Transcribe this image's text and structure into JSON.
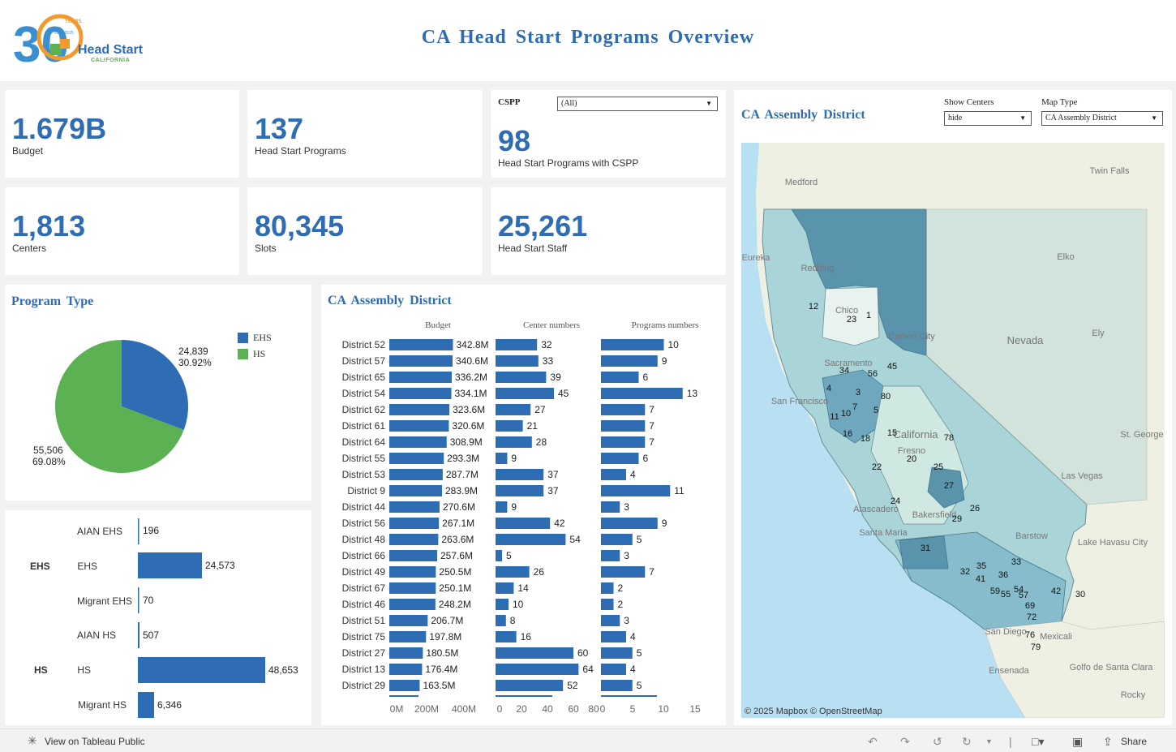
{
  "header": {
    "title": "CA  Head  Start  Programs  Overview",
    "logo_number": "30",
    "logo_years": "YEARS",
    "logo_range": "1995 2025",
    "logo_name": "Head Start",
    "logo_sub": "CALIFORNIA"
  },
  "kpis": [
    {
      "value": "1.679B",
      "label": "Budget"
    },
    {
      "value": "137",
      "label": "Head Start Programs"
    },
    {
      "value": "98",
      "label": "Head Start Programs with CSPP"
    },
    {
      "value": "1,813",
      "label": "Centers"
    },
    {
      "value": "80,345",
      "label": "Slots"
    },
    {
      "value": "25,261",
      "label": "Head Start Staff"
    }
  ],
  "cspp_filter": {
    "label": "CSPP",
    "value": "(All)"
  },
  "program_type": {
    "title": "Program  Type",
    "legend": [
      {
        "name": "EHS",
        "color": "#2e6cb3"
      },
      {
        "name": "HS",
        "color": "#5cb152"
      }
    ],
    "labels": [
      {
        "value": "24,839",
        "pct": "30.92%"
      },
      {
        "value": "55,506",
        "pct": "69.08%"
      }
    ]
  },
  "subprogram": {
    "groups": [
      "EHS",
      "HS"
    ],
    "rows": [
      {
        "label": "AIAN EHS",
        "text": "196"
      },
      {
        "label": "EHS",
        "text": "24,573"
      },
      {
        "label": "Migrant EHS",
        "text": "70"
      },
      {
        "label": "AIAN HS",
        "text": "507"
      },
      {
        "label": "HS",
        "text": "48,653"
      },
      {
        "label": "Migrant HS",
        "text": "6,346"
      }
    ]
  },
  "district_table": {
    "title": "CA  Assembly  District",
    "col_budget": "Budget",
    "col_centers": "Center numbers",
    "col_programs": "Programs numbers",
    "axis_budget": [
      "0M",
      "200M",
      "400M"
    ],
    "axis_centers": [
      "0",
      "20",
      "40",
      "60",
      "80"
    ],
    "axis_programs": [
      "0",
      "5",
      "10",
      "15"
    ],
    "rows": [
      {
        "district": "District 52",
        "budget_label": "342.8M",
        "centers_label": "32",
        "programs_label": "10"
      },
      {
        "district": "District 57",
        "budget_label": "340.6M",
        "centers_label": "33",
        "programs_label": "9"
      },
      {
        "district": "District 65",
        "budget_label": "336.2M",
        "centers_label": "39",
        "programs_label": "6"
      },
      {
        "district": "District 54",
        "budget_label": "334.1M",
        "centers_label": "45",
        "programs_label": "13"
      },
      {
        "district": "District 62",
        "budget_label": "323.6M",
        "centers_label": "27",
        "programs_label": "7"
      },
      {
        "district": "District 61",
        "budget_label": "320.6M",
        "centers_label": "21",
        "programs_label": "7"
      },
      {
        "district": "District 64",
        "budget_label": "308.9M",
        "centers_label": "28",
        "programs_label": "7"
      },
      {
        "district": "District 55",
        "budget_label": "293.3M",
        "centers_label": "9",
        "programs_label": "6"
      },
      {
        "district": "District 53",
        "budget_label": "287.7M",
        "centers_label": "37",
        "programs_label": "4"
      },
      {
        "district": "District 9",
        "budget_label": "283.9M",
        "centers_label": "37",
        "programs_label": "11"
      },
      {
        "district": "District 44",
        "budget_label": "270.6M",
        "centers_label": "9",
        "programs_label": "3"
      },
      {
        "district": "District 56",
        "budget_label": "267.1M",
        "centers_label": "42",
        "programs_label": "9"
      },
      {
        "district": "District 48",
        "budget_label": "263.6M",
        "centers_label": "54",
        "programs_label": "5"
      },
      {
        "district": "District 66",
        "budget_label": "257.6M",
        "centers_label": "5",
        "programs_label": "3"
      },
      {
        "district": "District 49",
        "budget_label": "250.5M",
        "centers_label": "26",
        "programs_label": "7"
      },
      {
        "district": "District 67",
        "budget_label": "250.1M",
        "centers_label": "14",
        "programs_label": "2"
      },
      {
        "district": "District 46",
        "budget_label": "248.2M",
        "centers_label": "10",
        "programs_label": "2"
      },
      {
        "district": "District 51",
        "budget_label": "206.7M",
        "centers_label": "8",
        "programs_label": "3"
      },
      {
        "district": "District 75",
        "budget_label": "197.8M",
        "centers_label": "16",
        "programs_label": "4"
      },
      {
        "district": "District 27",
        "budget_label": "180.5M",
        "centers_label": "60",
        "programs_label": "5"
      },
      {
        "district": "District 13",
        "budget_label": "176.4M",
        "centers_label": "64",
        "programs_label": "4"
      },
      {
        "district": "District 29",
        "budget_label": "163.5M",
        "centers_label": "52",
        "programs_label": "5"
      }
    ]
  },
  "map_panel": {
    "title": "CA  Assembly  District",
    "show_centers_label": "Show Centers",
    "show_centers_value": "hide",
    "map_type_label": "Map Type",
    "map_type_value": "CA  Assembly  District",
    "places": [
      "Medford",
      "Twin Falls",
      "Eureka",
      "Redding",
      "Elko",
      "Chico",
      "Carson City",
      "Nevada",
      "Ely",
      "Sacramento",
      "San Francisco",
      "California",
      "Fresno",
      "St. George",
      "Las Vegas",
      "Atascadero",
      "Bakersfield",
      "Santa Maria",
      "Barstow",
      "Lake Havasu City",
      "San Diego",
      "Mexicali",
      "Ensenada",
      "Golfo de Santa Clara",
      "Rocky"
    ],
    "district_numbers": [
      "12",
      "23",
      "1",
      "34",
      "56",
      "45",
      "4",
      "3",
      "80",
      "7",
      "11",
      "10",
      "5",
      "16",
      "18",
      "15",
      "78",
      "22",
      "20",
      "25",
      "27",
      "24",
      "26",
      "29",
      "31",
      "32",
      "35",
      "33",
      "41",
      "36",
      "59",
      "55",
      "54",
      "57",
      "42",
      "30",
      "69",
      "72",
      "76",
      "79"
    ],
    "attribution": "© 2025 Mapbox  © OpenStreetMap"
  },
  "footer": {
    "view_label": "View on Tableau Public",
    "share_label": "Share"
  },
  "colors": {
    "accent": "#2e6cb3",
    "hs_green": "#5cb152",
    "map_water": "#b8e0f2",
    "map_land": "#eef0e4"
  }
}
